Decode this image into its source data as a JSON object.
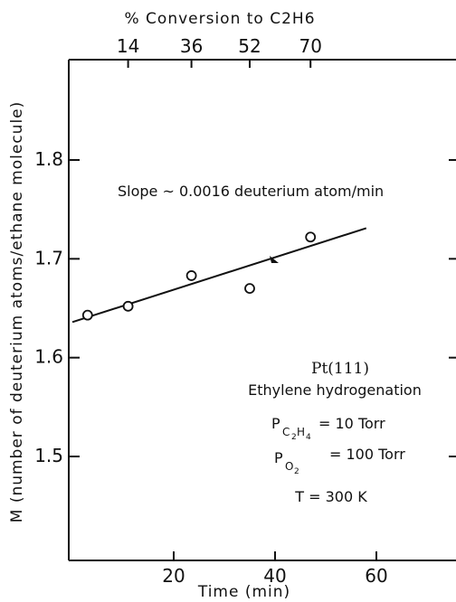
{
  "chart_data": {
    "type": "scatter",
    "title": "",
    "xlabel": "Time (min)",
    "ylabel": "M (number of deuterium atoms/ethane molecule)",
    "top_axis_label": "% Conversion to C2H6",
    "xlim": [
      0,
      78
    ],
    "ylim": [
      1.4,
      1.9
    ],
    "x_ticks": [
      20,
      40,
      60
    ],
    "y_ticks": [
      1.5,
      1.6,
      1.7,
      1.8
    ],
    "y_tick_labels": [
      "1.5",
      "1.6",
      "1.7",
      "1.8"
    ],
    "top_ticks": [
      {
        "x": 11,
        "label": "14"
      },
      {
        "x": 23.5,
        "label": "36"
      },
      {
        "x": 35,
        "label": "52"
      },
      {
        "x": 47,
        "label": "70"
      }
    ],
    "grid": false,
    "series": [
      {
        "marker": "open-circle",
        "points": [
          {
            "x": 3,
            "y": 1.643
          },
          {
            "x": 11,
            "y": 1.652
          },
          {
            "x": 23.5,
            "y": 1.683
          },
          {
            "x": 35,
            "y": 1.67
          },
          {
            "x": 47,
            "y": 1.722
          }
        ]
      }
    ],
    "fit_line": {
      "x": [
        0,
        58
      ],
      "y": [
        1.636,
        1.731
      ]
    },
    "annotations": {
      "slope": "Slope ~ 0.0016 deuterium atom/min",
      "surface": "Pt(111)",
      "reaction": "Ethylene hydrogenation",
      "p_c2h4_value": "= 10 Torr",
      "p_o2_value": "= 100 Torr",
      "temperature": "T = 300 K"
    }
  }
}
